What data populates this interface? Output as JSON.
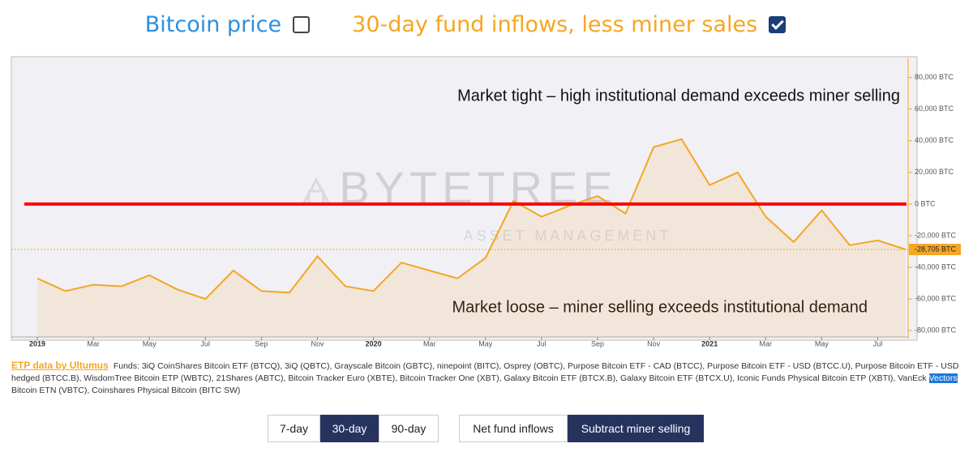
{
  "chart_data": {
    "type": "line",
    "toggles": [
      {
        "label": "Bitcoin price",
        "color": "#2b8fe0",
        "checked": false
      },
      {
        "label": "30-day fund inflows, less miner sales",
        "color": "#f5a623",
        "checked": true
      }
    ],
    "annotations": [
      "Market tight – high institutional demand exceeds miner selling",
      "Market loose – miner selling exceeds institutional demand"
    ],
    "watermark": [
      "BYTETREE",
      "ASSET MANAGEMENT"
    ],
    "x": [
      "2019-01",
      "2019-02",
      "2019-03",
      "2019-04",
      "2019-05",
      "2019-06",
      "2019-07",
      "2019-08",
      "2019-09",
      "2019-10",
      "2019-11",
      "2019-12",
      "2020-01",
      "2020-02",
      "2020-03",
      "2020-04",
      "2020-05",
      "2020-06",
      "2020-07",
      "2020-08",
      "2020-09",
      "2020-10",
      "2020-11",
      "2020-12",
      "2021-01",
      "2021-02",
      "2021-03",
      "2021-04",
      "2021-05",
      "2021-06",
      "2021-07",
      "2021-08"
    ],
    "series": [
      {
        "name": "30-day fund inflows, less miner sales",
        "color": "#f5a623",
        "values": [
          -47000,
          -55000,
          -51000,
          -52000,
          -45000,
          -54000,
          -60000,
          -42000,
          -55000,
          -56000,
          -33000,
          -52000,
          -55000,
          -37000,
          -42000,
          -47000,
          -34000,
          2000,
          -8000,
          -1000,
          5000,
          -6000,
          36000,
          41000,
          12000,
          20000,
          -8000,
          -24000,
          -4000,
          -26000,
          -23000,
          -28705
        ]
      }
    ],
    "last_label": {
      "value": -28705,
      "label": "-28,705 BTC"
    },
    "reference_line": {
      "value": 0,
      "color": "#ff0000"
    },
    "ylim": [
      -84000,
      88000
    ],
    "yticks": [
      {
        "value": -80000,
        "label": "-80,000 BTC"
      },
      {
        "value": -60000,
        "label": "-60,000 BTC"
      },
      {
        "value": -40000,
        "label": "-40,000 BTC"
      },
      {
        "value": -20000,
        "label": "-20,000 BTC"
      },
      {
        "value": 0,
        "label": "0 BTC"
      },
      {
        "value": 20000,
        "label": "20,000 BTC"
      },
      {
        "value": 40000,
        "label": "40,000 BTC"
      },
      {
        "value": 60000,
        "label": "60,000 BTC"
      },
      {
        "value": 80000,
        "label": "80,000 BTC"
      }
    ],
    "xticks": [
      {
        "value": "2019-01",
        "label": "2019"
      },
      {
        "value": "2019-03",
        "label": "Mar"
      },
      {
        "value": "2019-05",
        "label": "May"
      },
      {
        "value": "2019-07",
        "label": "Jul"
      },
      {
        "value": "2019-09",
        "label": "Sep"
      },
      {
        "value": "2019-11",
        "label": "Nov"
      },
      {
        "value": "2020-01",
        "label": "2020"
      },
      {
        "value": "2020-03",
        "label": "Mar"
      },
      {
        "value": "2020-05",
        "label": "May"
      },
      {
        "value": "2020-07",
        "label": "Jul"
      },
      {
        "value": "2020-09",
        "label": "Sep"
      },
      {
        "value": "2020-11",
        "label": "Nov"
      },
      {
        "value": "2021-01",
        "label": "2021"
      },
      {
        "value": "2021-03",
        "label": "Mar"
      },
      {
        "value": "2021-05",
        "label": "May"
      },
      {
        "value": "2021-07",
        "label": "Jul"
      }
    ],
    "footer": {
      "source": "ETP data by Ultumus",
      "funds_before": "Funds: 3iQ CoinShares Bitcoin ETF (BTCQ), 3iQ (QBTC), Grayscale Bitcoin (GBTC), ninepoint (BITC), Osprey (OBTC), Purpose Bitcoin ETF - CAD (BTCC), Purpose Bitcoin ETF - USD (BTCC.U), Purpose Bitcoin ETF - USD hedged (BTCC.B), WisdomTree Bitcoin ETP (WBTC), 21Shares (ABTC), Bitcoin Tracker Euro (XBTE), Bitcoin Tracker One (XBT), Galaxy Bitcoin ETF (BTCX.B), Galaxy Bitcoin ETF (BTCX.U), Iconic Funds Physical Bitcoin ETP (XBTI), VanEck",
      "funds_highlight": "Vectors",
      "funds_after": "Bitcoin ETN (VBTC), Coinshares Physical Bitcoin (BITC SW)"
    },
    "buttons": [
      [
        {
          "label": "7-day",
          "selected": false
        },
        {
          "label": "30-day",
          "selected": true
        },
        {
          "label": "90-day",
          "selected": false
        }
      ],
      [
        {
          "label": "Net fund inflows",
          "selected": false
        },
        {
          "label": "Subtract miner selling",
          "selected": true
        }
      ]
    ]
  }
}
